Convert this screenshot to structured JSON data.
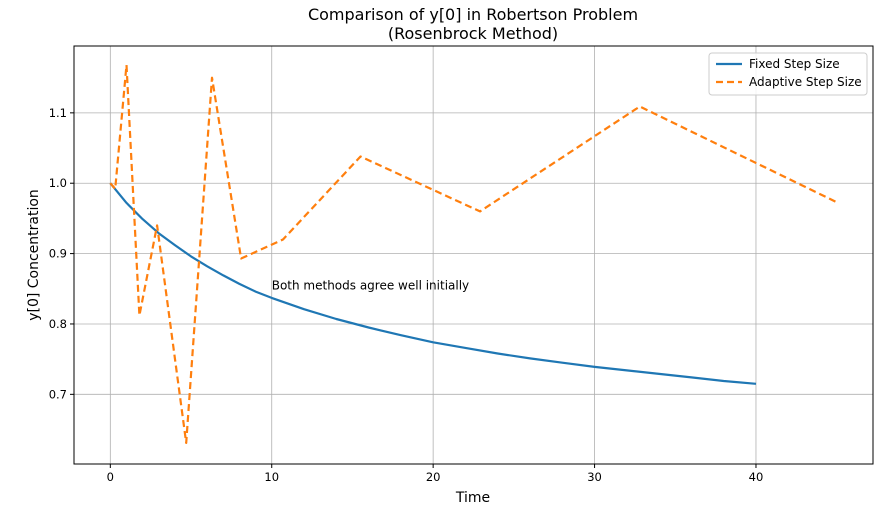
{
  "chart_data": {
    "type": "line",
    "title_lines": [
      "Comparison of y[0] in Robertson Problem",
      "(Rosenbrock Method)"
    ],
    "xlabel": "Time",
    "ylabel": "y[0] Concentration",
    "xlim": [
      -2.25,
      47.25
    ],
    "ylim": [
      0.601,
      1.195
    ],
    "xticks": [
      0,
      10,
      20,
      30,
      40
    ],
    "xtick_labels": [
      "0",
      "10",
      "20",
      "30",
      "40"
    ],
    "yticks": [
      0.7,
      0.8,
      0.9,
      1.0,
      1.1
    ],
    "ytick_labels": [
      "0.7",
      "0.8",
      "0.9",
      "1.0",
      "1.1"
    ],
    "grid": true,
    "legend_position": "top-right",
    "annotation": {
      "text": "Both methods agree well initially",
      "x": 10,
      "y": 0.855
    },
    "series": [
      {
        "name": "Fixed Step Size",
        "color": "#1f77b4",
        "style": "solid",
        "x": [
          0,
          1,
          2,
          3,
          4,
          5,
          6,
          7,
          8,
          9,
          10,
          12,
          14,
          16,
          18,
          20,
          22,
          24,
          26,
          28,
          30,
          32,
          34,
          36,
          38,
          40
        ],
        "y": [
          1.0,
          0.972,
          0.949,
          0.929,
          0.912,
          0.896,
          0.882,
          0.869,
          0.857,
          0.846,
          0.837,
          0.821,
          0.807,
          0.795,
          0.784,
          0.774,
          0.766,
          0.758,
          0.751,
          0.745,
          0.739,
          0.734,
          0.729,
          0.724,
          0.719,
          0.715
        ]
      },
      {
        "name": "Adaptive Step Size",
        "color": "#ff7f0e",
        "style": "dashed",
        "x": [
          0,
          0.3,
          1.0,
          1.8,
          2.9,
          4.7,
          6.3,
          8.1,
          10.7,
          15.5,
          22.9,
          32.8,
          45.0
        ],
        "y": [
          1.0,
          0.992,
          1.168,
          0.812,
          0.94,
          0.631,
          1.15,
          0.893,
          0.92,
          1.038,
          0.96,
          1.109,
          0.973
        ]
      }
    ]
  }
}
